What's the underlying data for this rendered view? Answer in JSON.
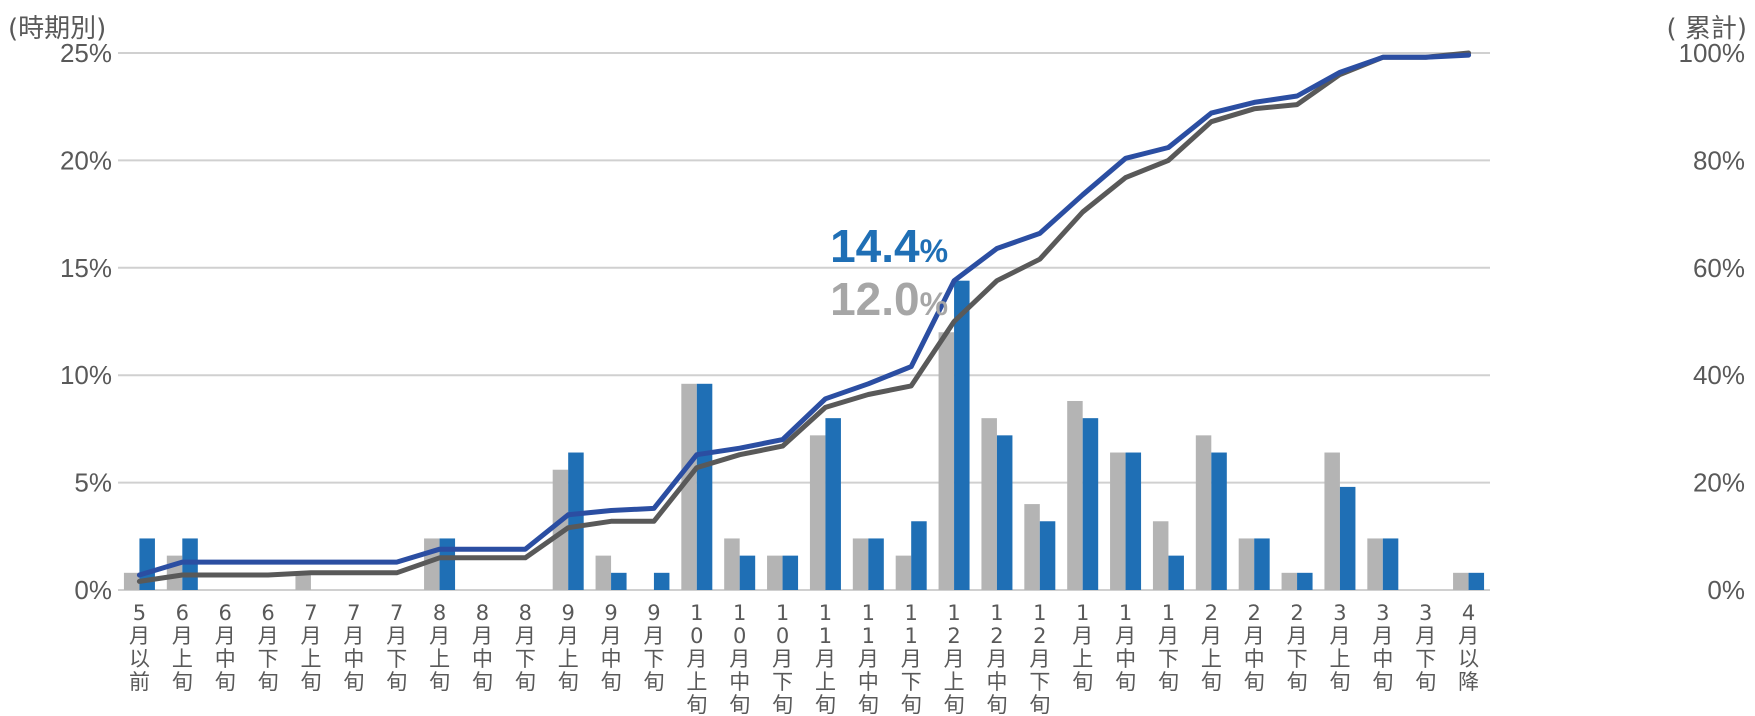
{
  "chart_data": {
    "type": "bar",
    "left_axis_label": "(時期別)",
    "right_axis_label": "( 累計)",
    "left_ylim": [
      0,
      25
    ],
    "right_ylim": [
      0,
      100
    ],
    "left_ticks": [
      "0%",
      "5%",
      "10%",
      "15%",
      "20%",
      "25%"
    ],
    "right_ticks": [
      "0%",
      "20%",
      "40%",
      "60%",
      "80%",
      "100%"
    ],
    "grid": true,
    "categories": [
      "5月以前",
      "6月上旬",
      "6月中旬",
      "6月下旬",
      "7月上旬",
      "7月中旬",
      "7月下旬",
      "8月上旬",
      "8月中旬",
      "8月下旬",
      "9月上旬",
      "9月中旬",
      "9月下旬",
      "10月上旬",
      "10月中旬",
      "10月下旬",
      "11月上旬",
      "11月中旬",
      "11月下旬",
      "12月上旬",
      "12月中旬",
      "12月下旬",
      "1月上旬",
      "1月中旬",
      "1月下旬",
      "2月上旬",
      "2月中旬",
      "2月下旬",
      "3月上旬",
      "3月中旬",
      "3月下旬",
      "4月以降"
    ],
    "series": [
      {
        "kind": "bar",
        "axis": "left",
        "color": "#b4b4b4",
        "values": [
          0.8,
          1.6,
          0,
          0,
          0.8,
          0,
          0,
          2.4,
          0,
          0,
          5.6,
          1.6,
          0,
          9.6,
          2.4,
          1.6,
          7.2,
          2.4,
          1.6,
          12.0,
          8.0,
          4.0,
          8.8,
          6.4,
          3.2,
          7.2,
          2.4,
          0.8,
          6.4,
          2.4,
          0,
          0.8
        ]
      },
      {
        "kind": "bar",
        "axis": "left",
        "color": "#1f6fb5",
        "values": [
          2.4,
          2.4,
          0,
          0,
          0,
          0,
          0,
          2.4,
          0,
          0,
          6.4,
          0.8,
          0.8,
          9.6,
          1.6,
          1.6,
          8.0,
          2.4,
          3.2,
          14.4,
          7.2,
          3.2,
          8.0,
          6.4,
          1.6,
          6.4,
          2.4,
          0.8,
          4.8,
          2.4,
          0,
          0.8
        ]
      },
      {
        "kind": "line",
        "axis": "right",
        "color": "#595959",
        "values": [
          1.6,
          2.8,
          2.8,
          2.8,
          3.2,
          3.2,
          3.2,
          6.0,
          6.0,
          6.0,
          11.6,
          12.8,
          12.8,
          22.8,
          25.2,
          26.8,
          34.0,
          36.4,
          38.0,
          50.0,
          57.6,
          61.6,
          70.4,
          76.8,
          80.0,
          87.2,
          89.6,
          90.4,
          96.0,
          99.2,
          99.2,
          100.0
        ]
      },
      {
        "kind": "line",
        "axis": "right",
        "color": "#2b4ea2",
        "values": [
          2.8,
          5.2,
          5.2,
          5.2,
          5.2,
          5.2,
          5.2,
          7.6,
          7.6,
          7.6,
          14.0,
          14.8,
          15.2,
          25.2,
          26.4,
          28.0,
          35.6,
          38.4,
          41.6,
          57.6,
          63.6,
          66.4,
          73.6,
          80.4,
          82.4,
          88.8,
          90.8,
          92.0,
          96.4,
          99.2,
          99.2,
          99.6
        ]
      }
    ],
    "annotations": [
      {
        "value": "14.4",
        "unit": "%",
        "category_index": 19,
        "series": "blue"
      },
      {
        "value": "12.0",
        "unit": "%",
        "category_index": 19,
        "series": "gray"
      }
    ]
  }
}
